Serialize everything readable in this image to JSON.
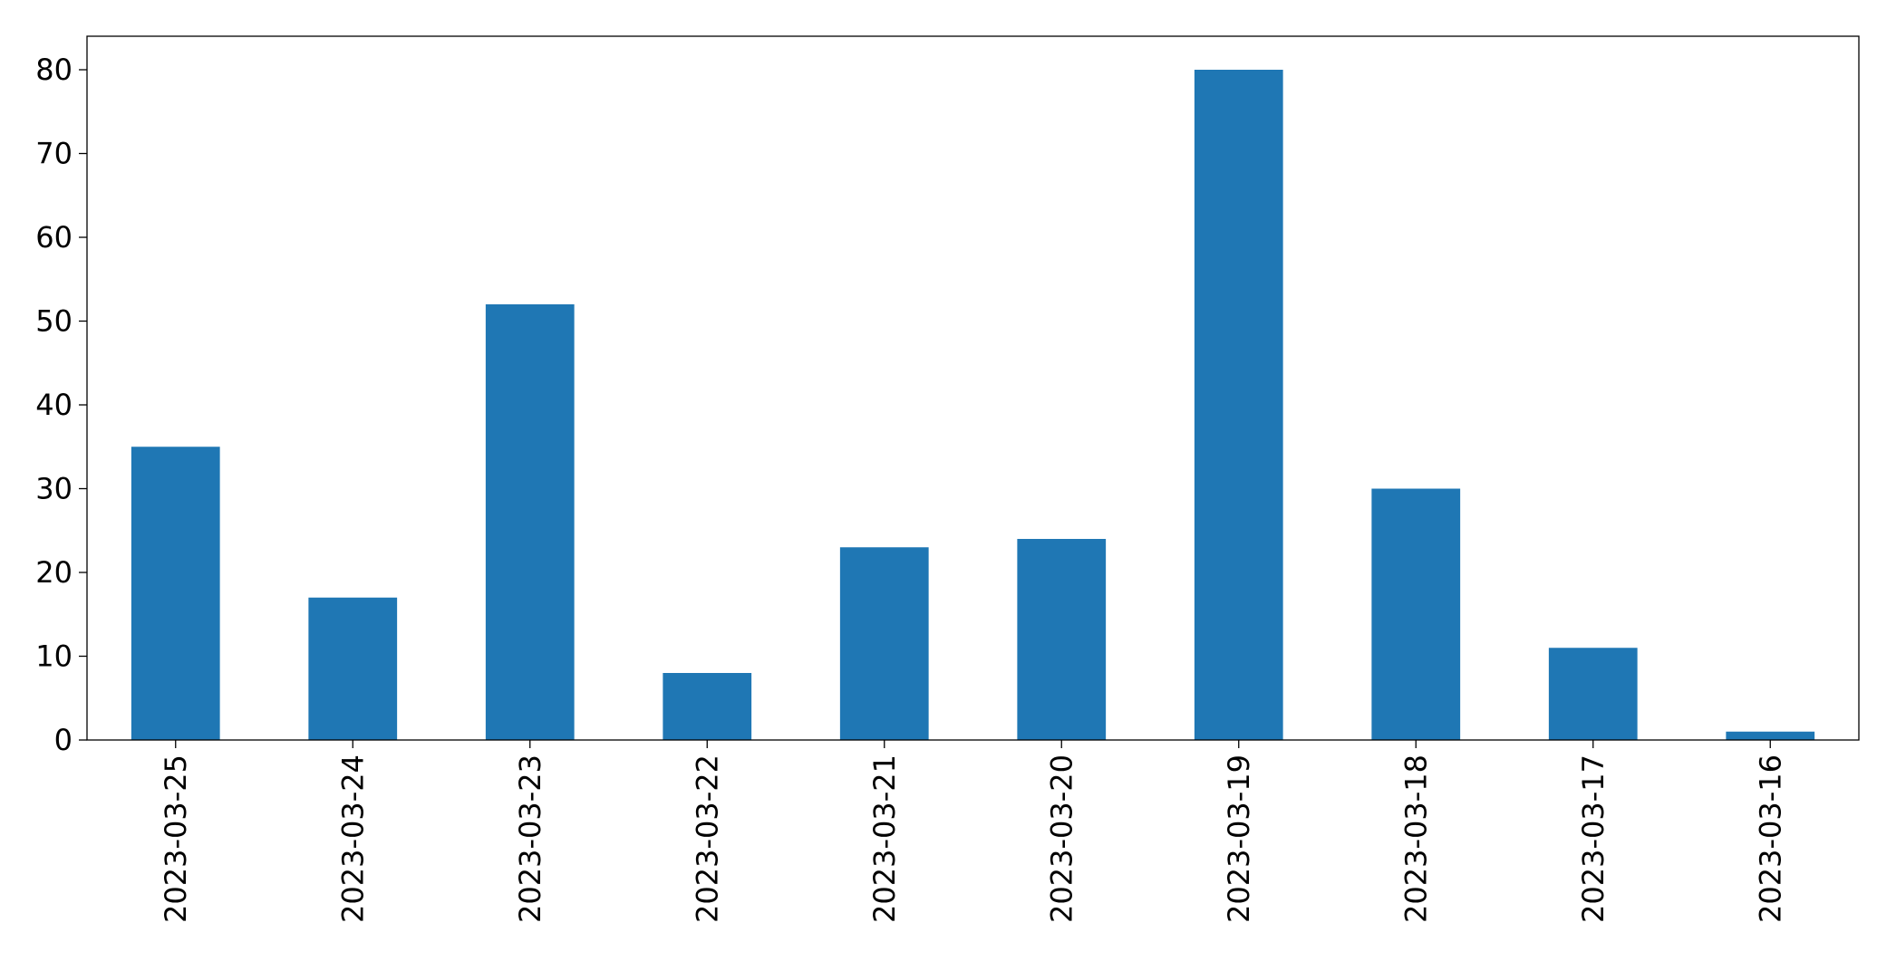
{
  "chart_data": {
    "type": "bar",
    "categories": [
      "2023-03-25",
      "2023-03-24",
      "2023-03-23",
      "2023-03-22",
      "2023-03-21",
      "2023-03-20",
      "2023-03-19",
      "2023-03-18",
      "2023-03-17",
      "2023-03-16"
    ],
    "values": [
      35,
      17,
      52,
      8,
      23,
      24,
      80,
      30,
      11,
      1
    ],
    "color": "#1f77b4",
    "ylim": [
      0,
      84
    ],
    "yticks": [
      0,
      10,
      20,
      30,
      40,
      50,
      60,
      70,
      80
    ],
    "grid": false
  }
}
